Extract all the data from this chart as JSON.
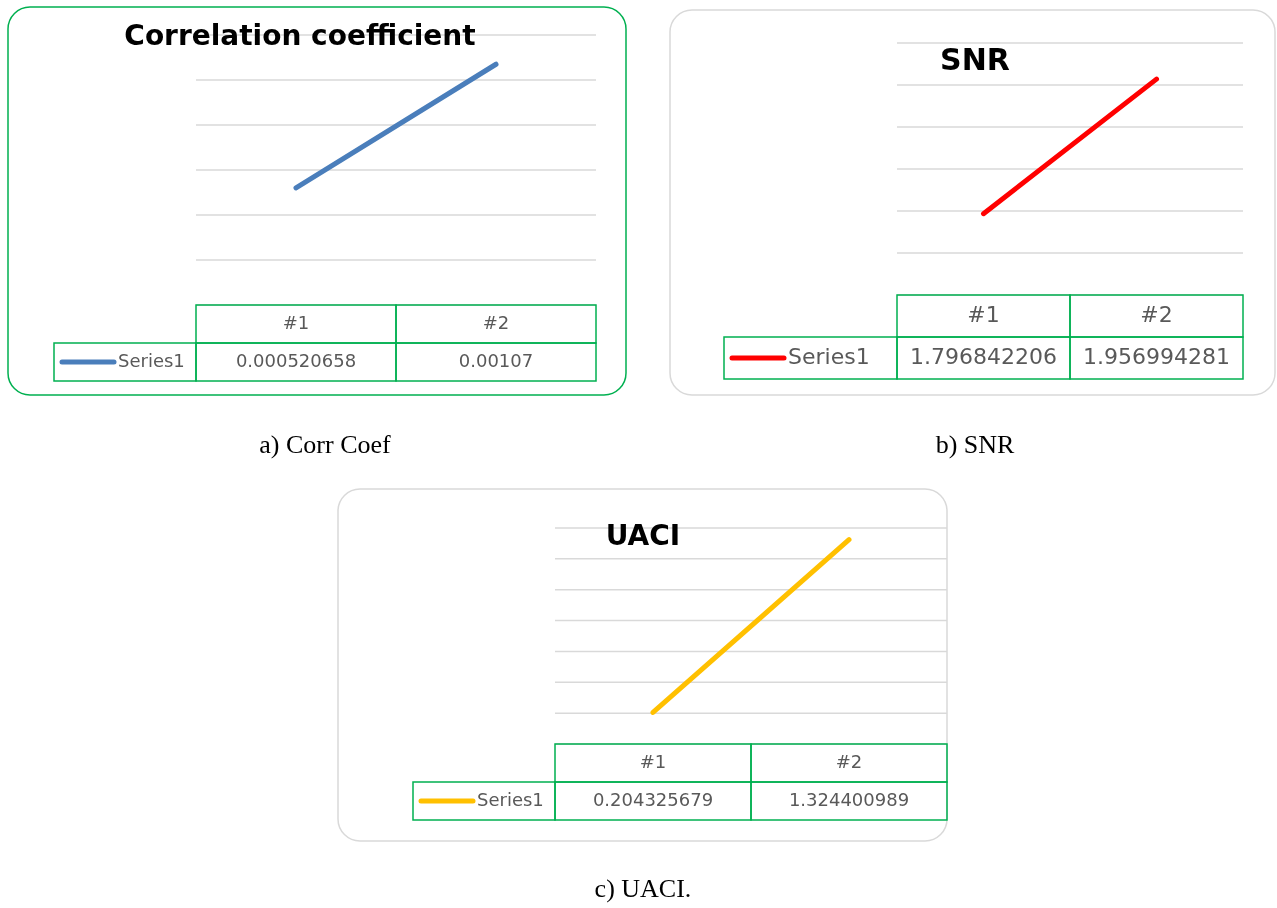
{
  "chart_data": [
    {
      "type": "line",
      "title": "Correlation coefficient",
      "categories": [
        "#1",
        "#2"
      ],
      "series": [
        {
          "name": "Series1",
          "color": "#4a7ebb",
          "values": [
            0.000520658,
            0.00107
          ]
        }
      ],
      "ylim": [
        0,
        0.0012
      ],
      "yticks": [
        {
          "value": 0,
          "label": null
        },
        {
          "value": 0.0002,
          "label": null
        },
        {
          "value": 0.0004,
          "label": null
        },
        {
          "value": 0.0006,
          "label": null
        },
        {
          "value": 0.0008,
          "label": null
        },
        {
          "value": 0.001,
          "label": null
        },
        {
          "value": 0.0012,
          "label": null
        }
      ],
      "grid": "y",
      "tick_labels": "x",
      "data_labels": true,
      "legend": "bottom",
      "annotations": [
        "a) Corr Coef"
      ]
    },
    {
      "type": "line",
      "title": "SNR",
      "categories": [
        "#1",
        "#2"
      ],
      "series": [
        {
          "name": "Series1",
          "color": "#ff0000",
          "values": [
            1.796842206,
            1.956994281
          ]
        }
      ],
      "ylim": [
        1.7,
        2.0
      ],
      "yticks": [
        {
          "value": 1.7,
          "label": null
        },
        {
          "value": 1.75,
          "label": null
        },
        {
          "value": 1.8,
          "label": null
        },
        {
          "value": 1.85,
          "label": null
        },
        {
          "value": 1.9,
          "label": null
        },
        {
          "value": 1.95,
          "label": null
        },
        {
          "value": 2.0,
          "label": null
        }
      ],
      "grid": "y",
      "tick_labels": "x",
      "data_labels": true,
      "legend": "bottom",
      "annotations": [
        "b) SNR"
      ]
    },
    {
      "type": "line",
      "title": "UACI",
      "categories": [
        "#1",
        "#2"
      ],
      "series": [
        {
          "name": "Series1",
          "color": "#ffc000",
          "values": [
            0.204325679,
            1.324400989
          ]
        }
      ],
      "ylim": [
        0,
        1.4
      ],
      "yticks": [
        {
          "value": 0,
          "label": null
        },
        {
          "value": 0.2,
          "label": null
        },
        {
          "value": 0.4,
          "label": null
        },
        {
          "value": 0.6,
          "label": null
        },
        {
          "value": 0.8,
          "label": null
        },
        {
          "value": 1.0,
          "label": null
        },
        {
          "value": 1.2,
          "label": null
        },
        {
          "value": 1.4,
          "label": null
        }
      ],
      "grid": "y",
      "tick_labels": "x",
      "data_labels": true,
      "legend": "bottom",
      "annotations": [
        "c) UACI."
      ]
    }
  ]
}
